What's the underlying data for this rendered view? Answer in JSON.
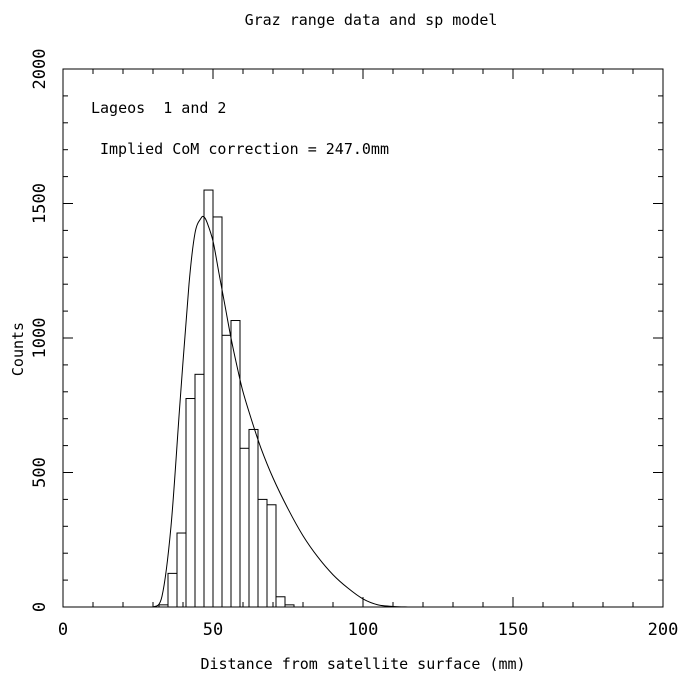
{
  "chart_data": {
    "type": "bar",
    "title": "Graz range data and sp model",
    "xlabel": "Distance from satellite surface (mm)",
    "ylabel": "Counts",
    "xlim": [
      0,
      200
    ],
    "ylim": [
      0,
      2000
    ],
    "xticks": [
      0,
      50,
      100,
      150,
      200
    ],
    "yticks": [
      0,
      500,
      1000,
      1500,
      2000
    ],
    "annotations": [
      "Lageos  1 and 2",
      "Implied CoM correction = 247.0mm"
    ],
    "grid": false,
    "histogram": {
      "bin_width": 3,
      "bins": [
        {
          "x0": 32,
          "value": 8
        },
        {
          "x0": 35,
          "value": 125
        },
        {
          "x0": 38,
          "value": 275
        },
        {
          "x0": 41,
          "value": 775
        },
        {
          "x0": 44,
          "value": 865
        },
        {
          "x0": 47,
          "value": 1550
        },
        {
          "x0": 50,
          "value": 1450
        },
        {
          "x0": 53,
          "value": 1010
        },
        {
          "x0": 56,
          "value": 1065
        },
        {
          "x0": 59,
          "value": 590
        },
        {
          "x0": 62,
          "value": 660
        },
        {
          "x0": 65,
          "value": 400
        },
        {
          "x0": 68,
          "value": 380
        },
        {
          "x0": 71,
          "value": 38
        },
        {
          "x0": 74,
          "value": 8
        }
      ]
    },
    "model_curve": {
      "x": [
        30,
        33,
        36,
        39,
        42,
        44,
        46,
        47,
        48,
        50,
        52,
        54,
        56,
        58,
        60,
        63,
        66,
        70,
        75,
        80,
        85,
        90,
        95,
        100,
        105,
        110,
        115
      ],
      "y": [
        0,
        40,
        300,
        760,
        1200,
        1390,
        1445,
        1450,
        1430,
        1360,
        1240,
        1120,
        1000,
        895,
        800,
        690,
        590,
        480,
        365,
        265,
        185,
        120,
        70,
        30,
        8,
        2,
        0
      ]
    }
  }
}
